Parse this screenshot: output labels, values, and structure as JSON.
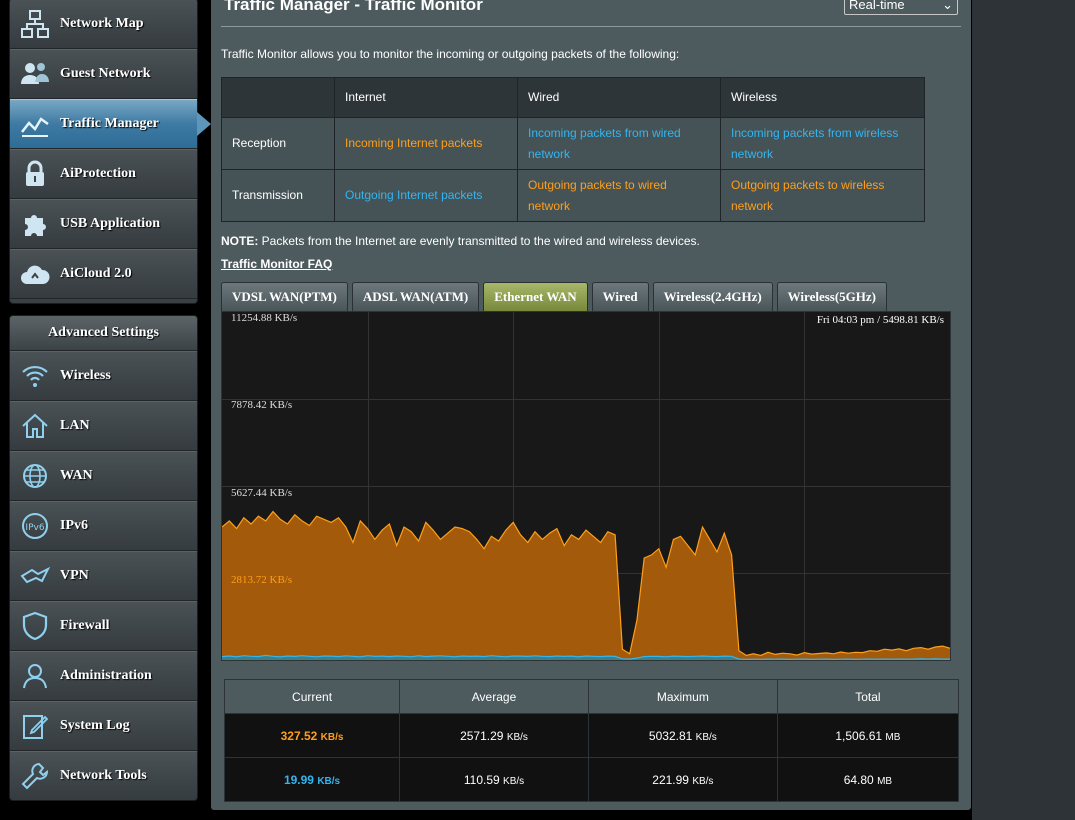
{
  "sidebar": {
    "top_items": [
      {
        "label": "Network Map",
        "icon": "network-map-icon"
      },
      {
        "label": "Guest Network",
        "icon": "guest-network-icon"
      },
      {
        "label": "Traffic Manager",
        "icon": "traffic-manager-icon",
        "active": true
      },
      {
        "label": "AiProtection",
        "icon": "lock-icon"
      },
      {
        "label": "USB Application",
        "icon": "puzzle-icon"
      },
      {
        "label": "AiCloud 2.0",
        "icon": "cloud-icon"
      }
    ],
    "advanced_header": "Advanced Settings",
    "advanced_items": [
      {
        "label": "Wireless",
        "icon": "wifi-icon"
      },
      {
        "label": "LAN",
        "icon": "home-icon"
      },
      {
        "label": "WAN",
        "icon": "globe-icon"
      },
      {
        "label": "IPv6",
        "icon": "ipv6-icon"
      },
      {
        "label": "VPN",
        "icon": "vpn-icon"
      },
      {
        "label": "Firewall",
        "icon": "shield-icon"
      },
      {
        "label": "Administration",
        "icon": "user-icon"
      },
      {
        "label": "System Log",
        "icon": "log-icon"
      },
      {
        "label": "Network Tools",
        "icon": "wrench-icon"
      }
    ]
  },
  "main": {
    "title": "Traffic Manager - Traffic Monitor",
    "mode_select": "Real-time",
    "intro": "Traffic Monitor allows you to monitor the incoming or outgoing packets of the following:",
    "table": {
      "headers": [
        "",
        "Internet",
        "Wired",
        "Wireless"
      ],
      "reception_label": "Reception",
      "reception": [
        "Incoming Internet packets",
        "Incoming packets from wired network",
        "Incoming packets from wireless network"
      ],
      "transmission_label": "Transmission",
      "transmission": [
        "Outgoing Internet packets",
        "Outgoing packets to wired network",
        "Outgoing packets to wireless network"
      ]
    },
    "note_label": "NOTE:",
    "note_text": " Packets from the Internet are evenly transmitted to the wired and wireless devices.",
    "faq_link": "Traffic Monitor FAQ",
    "tabs": [
      "VDSL WAN(PTM)",
      "ADSL WAN(ATM)",
      "Ethernet WAN",
      "Wired",
      "Wireless(2.4GHz)",
      "Wireless(5GHz)"
    ],
    "active_tab": "Ethernet WAN"
  },
  "graph": {
    "time_readout": "Fri 04:03 pm / 5498.81 KB/s",
    "y_labels": [
      "11254.88 KB/s",
      "7878.42 KB/s",
      "5627.44 KB/s",
      "2813.72 KB/s"
    ],
    "colors": {
      "incoming": "#ff9f1a",
      "incoming_fill": "#a35a0a",
      "outgoing": "#33b5f0",
      "outgoing_fill": "#3e7f84"
    }
  },
  "chart_data": {
    "type": "area",
    "ylim": [
      0,
      11254.88
    ],
    "series": [
      {
        "name": "Incoming",
        "values": [
          4300,
          4500,
          4250,
          4600,
          4400,
          4650,
          4500,
          4800,
          4550,
          4400,
          4700,
          4500,
          4350,
          4650,
          4550,
          4450,
          4600,
          4300,
          3800,
          4500,
          4250,
          3900,
          4200,
          4400,
          3700,
          4300,
          4150,
          3850,
          4450,
          4200,
          3900,
          4100,
          4300,
          4250,
          4150,
          3900,
          3600,
          4000,
          3850,
          4200,
          4450,
          4050,
          3800,
          4150,
          3900,
          4100,
          4250,
          3700,
          4050,
          3900,
          4200,
          4000,
          3800,
          4150,
          4050,
          350,
          200,
          1300,
          3300,
          3400,
          3600,
          3000,
          3900,
          4000,
          3700,
          3400,
          4300,
          3900,
          3500,
          4100,
          3400,
          300,
          150,
          200,
          150,
          250,
          180,
          220,
          200,
          160,
          240,
          190,
          210,
          230,
          200,
          260,
          220,
          250,
          240,
          300,
          280,
          350,
          320,
          360,
          300,
          380,
          400,
          350,
          420,
          450,
          380
        ]
      },
      {
        "name": "Outgoing",
        "values": [
          110,
          130,
          100,
          140,
          120,
          110,
          150,
          120,
          100,
          130,
          115,
          140,
          120,
          105,
          130,
          125,
          110,
          135,
          120,
          100,
          140,
          115,
          125,
          110,
          130,
          120,
          105,
          140,
          110,
          125,
          135,
          120,
          100,
          130,
          115,
          125,
          110,
          140,
          120,
          105,
          130,
          125,
          115,
          135,
          120,
          110,
          130,
          115,
          125,
          100,
          130,
          120,
          110,
          125,
          115,
          40,
          30,
          60,
          110,
          120,
          115,
          105,
          125,
          115,
          110,
          120,
          130,
          115,
          110,
          125,
          120,
          30,
          20,
          25,
          20,
          30,
          25,
          30,
          20,
          25,
          30,
          20,
          25,
          30,
          20,
          25,
          30,
          20,
          25,
          30,
          25,
          30,
          25,
          30,
          25,
          30,
          35,
          30,
          35,
          30,
          30
        ]
      }
    ]
  },
  "stats": {
    "headers": [
      "Current",
      "Average",
      "Maximum",
      "Total"
    ],
    "rows": [
      {
        "current": "327.52",
        "current_unit": "KB/s",
        "average": "2571.29",
        "average_unit": "KB/s",
        "maximum": "5032.81",
        "maximum_unit": "KB/s",
        "total": "1,506.61",
        "total_unit": "MB"
      },
      {
        "current": "19.99",
        "current_unit": "KB/s",
        "average": "110.59",
        "average_unit": "KB/s",
        "maximum": "221.99",
        "maximum_unit": "KB/s",
        "total": "64.80",
        "total_unit": "MB"
      }
    ]
  }
}
